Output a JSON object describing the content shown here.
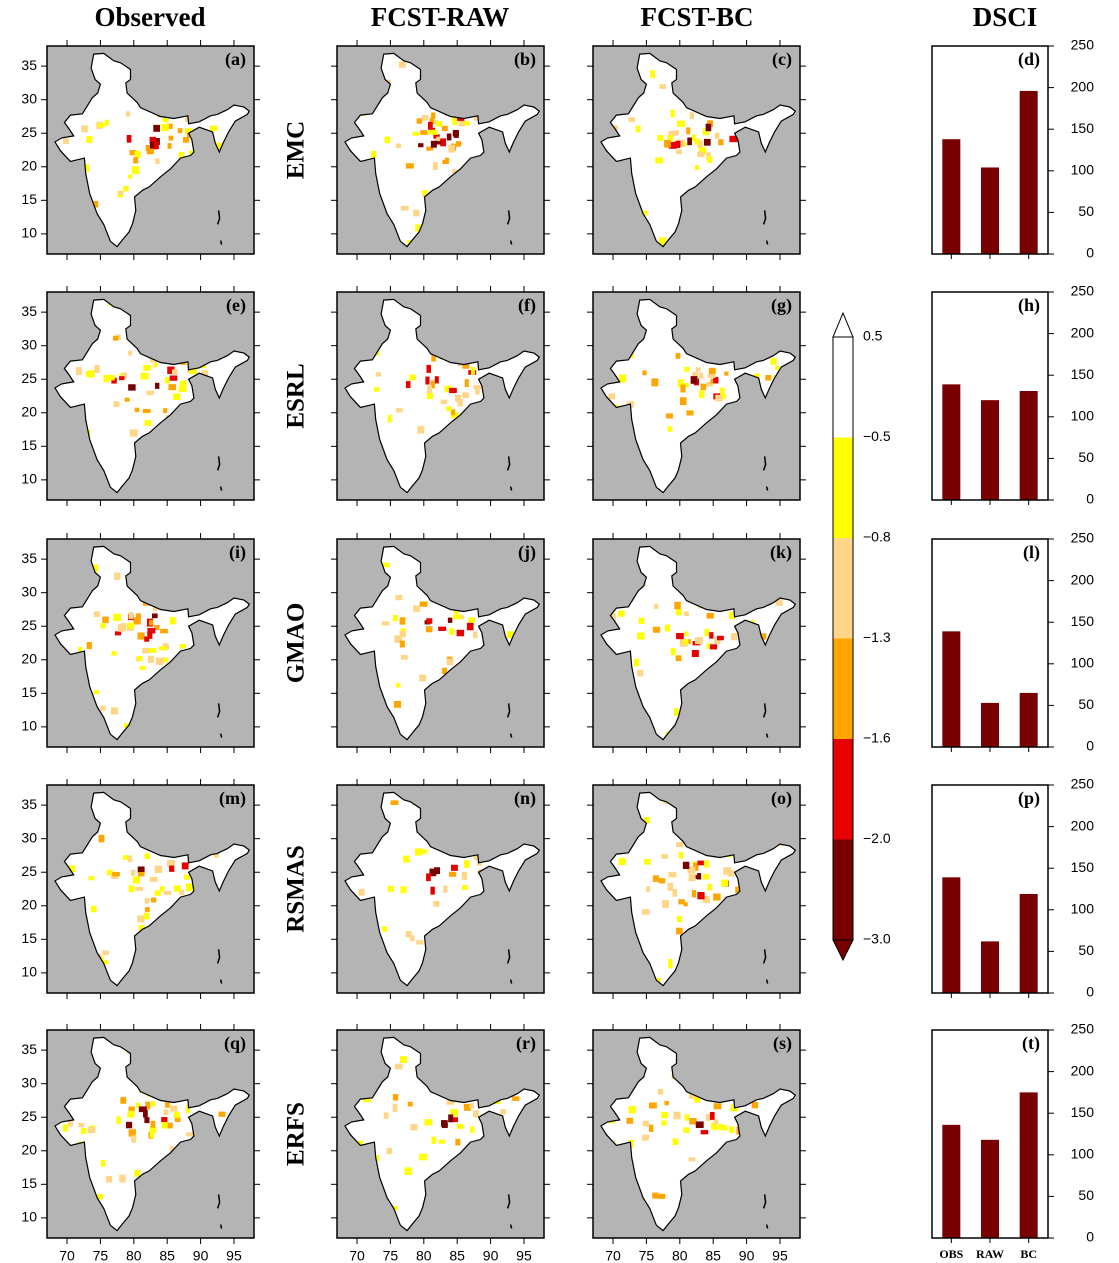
{
  "column_titles": [
    "Observed",
    "FCST-RAW",
    "FCST-BC",
    "DSCI"
  ],
  "row_labels": [
    "EMC",
    "ESRL",
    "GMAO",
    "RSMAS",
    "ERFS"
  ],
  "maps": [
    {
      "label": "(a)"
    },
    {
      "label": "(b)"
    },
    {
      "label": "(c)"
    },
    {
      "label": "(e)"
    },
    {
      "label": "(f)"
    },
    {
      "label": "(g)"
    },
    {
      "label": "(i)"
    },
    {
      "label": "(j)"
    },
    {
      "label": "(k)"
    },
    {
      "label": "(m)"
    },
    {
      "label": "(n)"
    },
    {
      "label": "(o)"
    },
    {
      "label": "(q)"
    },
    {
      "label": "(r)"
    },
    {
      "label": "(s)"
    }
  ],
  "map_axes": {
    "xlim": [
      67,
      98
    ],
    "xticks": [
      70,
      75,
      80,
      85,
      90,
      95
    ],
    "ylim": [
      7,
      38
    ],
    "yticks": [
      10,
      15,
      20,
      25,
      30,
      35
    ]
  },
  "colorbar": {
    "ticks": [
      0.5,
      {
        "value": -0.5,
        "label": "−0.5"
      },
      {
        "value": -0.8,
        "label": "−0.8"
      },
      {
        "value": -1.3,
        "label": "−1.3"
      },
      {
        "value": -1.6,
        "label": "−1.6"
      },
      {
        "value": -2.0,
        "label": "−2.0"
      },
      {
        "value": -3.0,
        "label": "−3.0"
      }
    ],
    "colors": [
      "#ffffff",
      "#ffff00",
      "#ffd587",
      "#ffa500",
      "#e60000",
      "#780000"
    ]
  },
  "chart_data": [
    {
      "type": "bar",
      "label": "(d)",
      "values": [
        138,
        104,
        196
      ],
      "color": "#780000",
      "ylim": [
        0,
        250
      ],
      "yticks": [
        0,
        50,
        100,
        150,
        200,
        250
      ]
    },
    {
      "type": "bar",
      "label": "(h)",
      "values": [
        139,
        120,
        131
      ],
      "color": "#780000",
      "ylim": [
        0,
        250
      ],
      "yticks": [
        0,
        50,
        100,
        150,
        200,
        250
      ]
    },
    {
      "type": "bar",
      "label": "(l)",
      "values": [
        139,
        53,
        65
      ],
      "color": "#780000",
      "ylim": [
        0,
        250
      ],
      "yticks": [
        0,
        50,
        100,
        150,
        200,
        250
      ]
    },
    {
      "type": "bar",
      "label": "(p)",
      "values": [
        139,
        62,
        119
      ],
      "color": "#780000",
      "ylim": [
        0,
        250
      ],
      "yticks": [
        0,
        50,
        100,
        150,
        200,
        250
      ]
    },
    {
      "type": "bar",
      "label": "(t)",
      "values": [
        136,
        118,
        175
      ],
      "color": "#780000",
      "ylim": [
        0,
        250
      ],
      "yticks": [
        0,
        50,
        100,
        150,
        200,
        250
      ],
      "categories": [
        "OBS",
        "RAW",
        "BC"
      ]
    }
  ]
}
